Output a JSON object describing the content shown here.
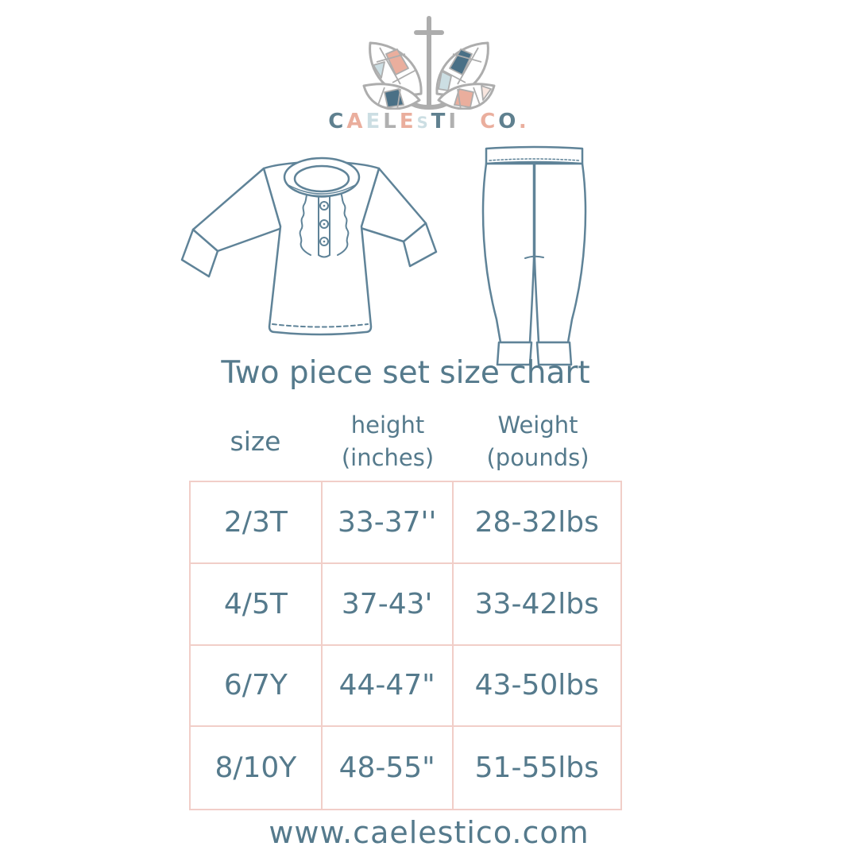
{
  "brand": {
    "name": "CAELESTI CO.",
    "logo_icon": "stained-glass-butterfly-with-anchor",
    "letters": [
      {
        "char": "C",
        "color": "#5f808f"
      },
      {
        "char": "A",
        "color": "#eaae9d"
      },
      {
        "char": "E",
        "color": "#ccdee3"
      },
      {
        "char": "L",
        "color": "#b0b0b0"
      },
      {
        "char": "E",
        "color": "#eaae9d"
      },
      {
        "char": "S",
        "color": "#ccdee3",
        "small": true
      },
      {
        "char": "T",
        "color": "#5f808f"
      },
      {
        "char": "I",
        "color": "#b0b0b0"
      },
      {
        "char": " "
      },
      {
        "char": "C",
        "color": "#eaae9d"
      },
      {
        "char": "O",
        "color": "#5f808f"
      },
      {
        "char": ".",
        "color": "#eaae9d"
      }
    ]
  },
  "illustrations": {
    "top": "long-sleeve-ruffle-pajama-top-line-drawing",
    "bottom": "jogger-pajama-pants-line-drawing"
  },
  "size_chart": {
    "title": "Two piece set size chart",
    "columns": [
      {
        "line1": "size",
        "line2": ""
      },
      {
        "line1": "height",
        "line2": "(inches)"
      },
      {
        "line1": "Weight",
        "line2": "(pounds)"
      }
    ],
    "rows": [
      [
        "2/3T",
        "33-37''",
        "28-32lbs"
      ],
      [
        "4/5T",
        "37-43'",
        "33-42lbs"
      ],
      [
        "6/7Y",
        "44-47\"",
        "43-50lbs"
      ],
      [
        "8/10Y",
        "48-55\"",
        "51-55lbs"
      ]
    ]
  },
  "chart_data": {
    "type": "table",
    "title": "Two piece set size chart",
    "columns": [
      "size",
      "height (inches)",
      "Weight (pounds)"
    ],
    "rows": [
      [
        "2/3T",
        "33-37''",
        "28-32lbs"
      ],
      [
        "4/5T",
        "37-43'",
        "33-42lbs"
      ],
      [
        "6/7Y",
        "44-47\"",
        "43-50lbs"
      ],
      [
        "8/10Y",
        "48-55\"",
        "51-55lbs"
      ]
    ]
  },
  "footer": {
    "website": "www.caelestico.com"
  },
  "colors": {
    "ink": "#557a8c",
    "garment_line": "#5f8398",
    "table_border": "#f1cec8",
    "logo_gray": "#adadad",
    "logo_salmon": "#eaae9d",
    "logo_light_blue": "#ccdee3",
    "logo_teal": "#4a7086",
    "logo_pale_pink": "#f8e6df"
  }
}
